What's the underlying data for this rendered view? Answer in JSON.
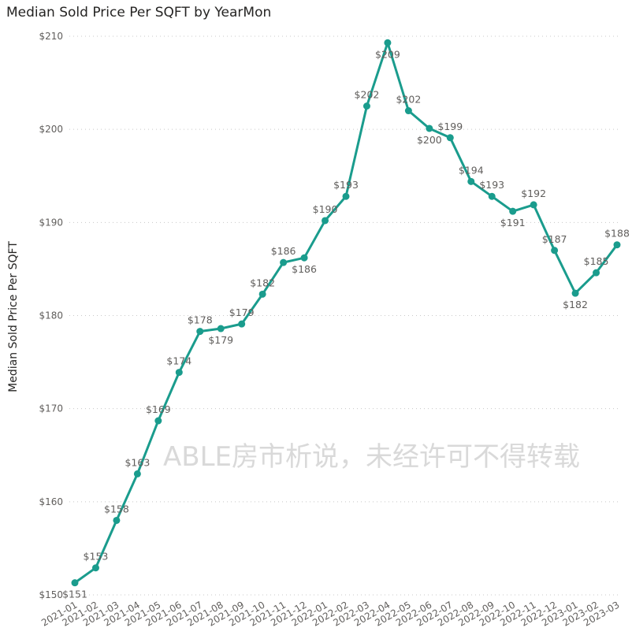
{
  "chart_data": {
    "type": "line",
    "title": "Median Sold Price Per SQFT by YearMon",
    "ylabel": "Median Sold Price Per SQFT",
    "xlabel": "",
    "categories": [
      "2021-01",
      "2021-02",
      "2021-03",
      "2021-04",
      "2021-05",
      "2021-06",
      "2021-07",
      "2021-08",
      "2021-09",
      "2021-10",
      "2021-11",
      "2021-12",
      "2022-01",
      "2022-02",
      "2022-03",
      "2022-04",
      "2022-05",
      "2022-06",
      "2022-07",
      "2022-08",
      "2022-09",
      "2022-10",
      "2022-11",
      "2022-12",
      "2023-01",
      "2023-02",
      "2023-03"
    ],
    "values": [
      151.3,
      152.9,
      158.0,
      163.0,
      168.7,
      173.9,
      178.3,
      178.6,
      179.1,
      182.3,
      185.7,
      186.2,
      190.2,
      192.8,
      202.5,
      209.3,
      202.0,
      200.1,
      199.1,
      194.4,
      192.8,
      191.2,
      191.9,
      187.0,
      182.4,
      184.6,
      187.6
    ],
    "data_labels": [
      "$151",
      "$153",
      "$158",
      "$163",
      "$169",
      "$174",
      "$178",
      "$179",
      "$179",
      "$182",
      "$186",
      "$186",
      "$190",
      "$193",
      "$202",
      "$209",
      "$202",
      "$200",
      "$199",
      "$194",
      "$193",
      "$191",
      "$192",
      "$187",
      "$182",
      "$185",
      "$188"
    ],
    "label_position": [
      "below",
      "above",
      "above",
      "above",
      "above",
      "above",
      "above",
      "below",
      "above",
      "above",
      "above",
      "below",
      "above",
      "above",
      "above",
      "below",
      "above",
      "below",
      "above",
      "above",
      "above",
      "below",
      "above",
      "above",
      "below",
      "above",
      "above"
    ],
    "ylim": [
      150,
      210
    ],
    "yticks": [
      150,
      160,
      170,
      180,
      190,
      200,
      210
    ],
    "ytick_labels": [
      "$150",
      "$160",
      "$170",
      "$180",
      "$190",
      "$200",
      "$210"
    ],
    "grid": "horizontal-dotted",
    "line_color": "#1a9c8d",
    "gridline_color": "#c8c8c8",
    "label_color": "#605e5c"
  },
  "watermark": "ABLE房市析说，未经许可不得转载"
}
